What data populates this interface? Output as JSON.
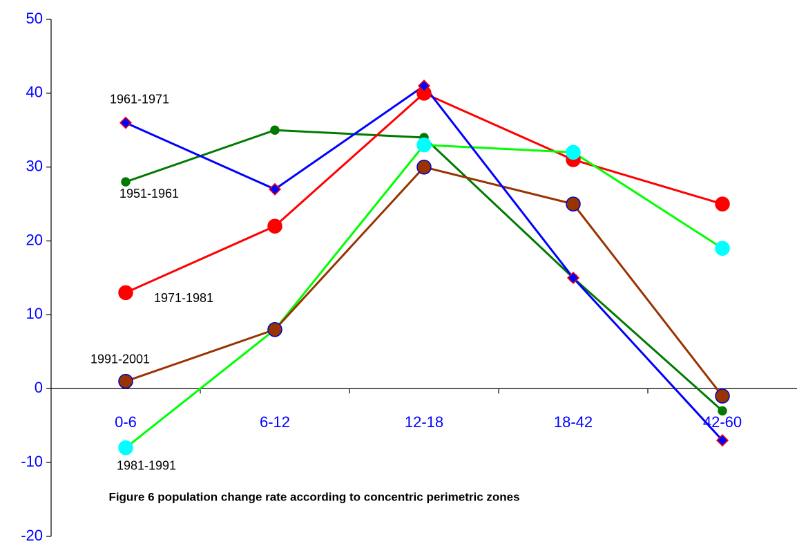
{
  "chart_data": {
    "type": "line",
    "caption": "Figure 6 population change rate according to concentric perimetric zones",
    "categories": [
      "0-6",
      "6-12",
      "12-18",
      "18-42",
      "42-60"
    ],
    "series": [
      {
        "name": "1951-1961",
        "color": "#007a00",
        "marker": "circle",
        "marker_size": 6,
        "marker_color": "#007a00",
        "marker_edge": "#007a00",
        "values": [
          28,
          35,
          34,
          15,
          -3
        ]
      },
      {
        "name": "1971-1981",
        "color": "#ff0000",
        "marker": "circle",
        "marker_size": 10,
        "marker_color": "#ff0000",
        "marker_edge": "#ff0000",
        "values": [
          13,
          22,
          40,
          31,
          25
        ]
      },
      {
        "name": "1981-1991",
        "color": "#00ff00",
        "marker": "circle",
        "marker_size": 10,
        "marker_color": "#00ffff",
        "marker_edge": "#00ffff",
        "values": [
          -8,
          8,
          33,
          32,
          19
        ]
      },
      {
        "name": "1991-2001",
        "color": "#993300",
        "marker": "circle",
        "marker_size": 10,
        "marker_color": "#993300",
        "marker_edge": "#0000cc",
        "values": [
          1,
          8,
          30,
          25,
          -1
        ]
      },
      {
        "name": "1961-1971",
        "color": "#0000ff",
        "marker": "diamond",
        "marker_size": 8,
        "marker_color": "#0000ff",
        "marker_edge": "#ff0000",
        "values": [
          36,
          27,
          41,
          15,
          -7
        ]
      }
    ],
    "ylim": [
      -20,
      50
    ],
    "yticks": [
      -20,
      -10,
      0,
      10,
      20,
      30,
      40,
      50
    ],
    "grid": false
  }
}
